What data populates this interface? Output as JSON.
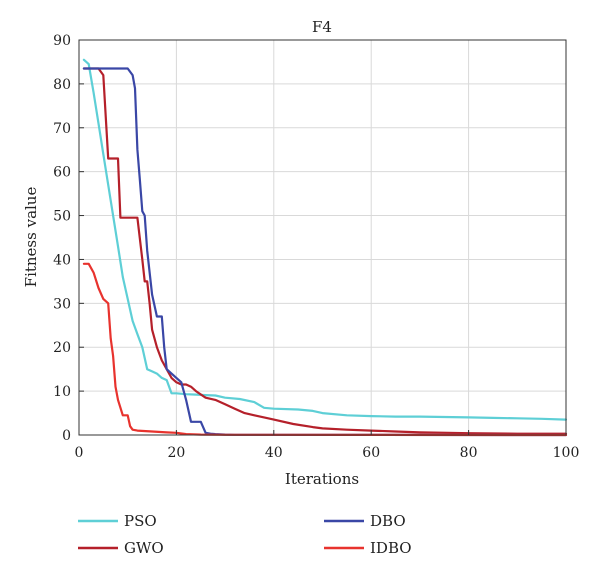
{
  "chart_data": {
    "type": "line",
    "title": "F4",
    "xlabel": "Iterations",
    "ylabel": "Fitness value",
    "xlim": [
      0,
      100
    ],
    "ylim": [
      0,
      90
    ],
    "xticks": [
      0,
      20,
      40,
      60,
      80,
      100
    ],
    "yticks": [
      0,
      10,
      20,
      30,
      40,
      50,
      60,
      70,
      80,
      90
    ],
    "grid": true,
    "legend_position": "bottom",
    "series": [
      {
        "name": "PSO",
        "color": "#5ecfd6",
        "x": [
          1,
          2,
          3,
          4,
          5,
          6,
          7,
          8,
          9,
          10,
          11,
          12,
          13,
          14,
          15,
          16,
          17,
          18,
          19,
          20,
          22,
          24,
          26,
          28,
          30,
          33,
          36,
          38,
          40,
          45,
          48,
          50,
          55,
          60,
          65,
          70,
          75,
          80,
          85,
          90,
          95,
          100
        ],
        "y": [
          85.5,
          84.5,
          78,
          71,
          64,
          57,
          50,
          43,
          36,
          31,
          26,
          23,
          20,
          15,
          14.5,
          14,
          13,
          12.5,
          9.5,
          9.5,
          9.3,
          9.2,
          9.1,
          9.0,
          8.5,
          8.2,
          7.5,
          6.2,
          6.0,
          5.8,
          5.5,
          5.0,
          4.5,
          4.3,
          4.2,
          4.2,
          4.1,
          4.0,
          3.9,
          3.8,
          3.7,
          3.5
        ]
      },
      {
        "name": "GWO",
        "color": "#b5202a",
        "x": [
          1,
          4,
          5,
          6,
          7,
          8,
          8.5,
          10,
          12,
          13,
          13.5,
          14,
          14.5,
          15,
          16,
          17,
          18,
          19,
          20,
          21,
          22,
          23,
          24,
          26,
          28,
          30,
          32,
          34,
          36,
          38,
          40,
          44,
          48,
          50,
          55,
          60,
          65,
          70,
          80,
          90,
          100
        ],
        "y": [
          83.5,
          83.5,
          82,
          63,
          63,
          63,
          49.5,
          49.5,
          49.5,
          40,
          35,
          35,
          30,
          24,
          20,
          17,
          15,
          13,
          12,
          11.5,
          11.5,
          11,
          10,
          8.5,
          8,
          7,
          6,
          5,
          4.5,
          4,
          3.5,
          2.5,
          1.8,
          1.5,
          1.2,
          1.0,
          0.8,
          0.6,
          0.4,
          0.3,
          0.3
        ]
      },
      {
        "name": "DBO",
        "color": "#3a47a6",
        "x": [
          1,
          5,
          10,
          11,
          11.5,
          12,
          12.5,
          13,
          13.5,
          14,
          15,
          16,
          17,
          17.5,
          18,
          19,
          20,
          21,
          22,
          23,
          24,
          25,
          26,
          27,
          28,
          30,
          32,
          100
        ],
        "y": [
          83.5,
          83.5,
          83.5,
          82,
          79,
          65,
          58,
          51,
          50,
          42,
          32,
          27,
          27,
          20,
          15,
          14,
          13,
          12,
          8,
          3,
          3,
          3,
          0.5,
          0.3,
          0.2,
          0.1,
          0.05,
          0
        ]
      },
      {
        "name": "IDBO",
        "color": "#e8332e",
        "x": [
          1,
          2,
          3,
          4,
          5,
          6,
          6.5,
          7,
          7.5,
          8,
          9,
          10,
          10.5,
          11,
          12,
          15,
          18,
          20,
          22,
          25,
          30,
          100
        ],
        "y": [
          39,
          39,
          37,
          33.5,
          31,
          30,
          22,
          18,
          11,
          8,
          4.5,
          4.5,
          2,
          1.2,
          1.0,
          0.8,
          0.6,
          0.5,
          0.2,
          0.1,
          0.05,
          0
        ]
      }
    ]
  }
}
